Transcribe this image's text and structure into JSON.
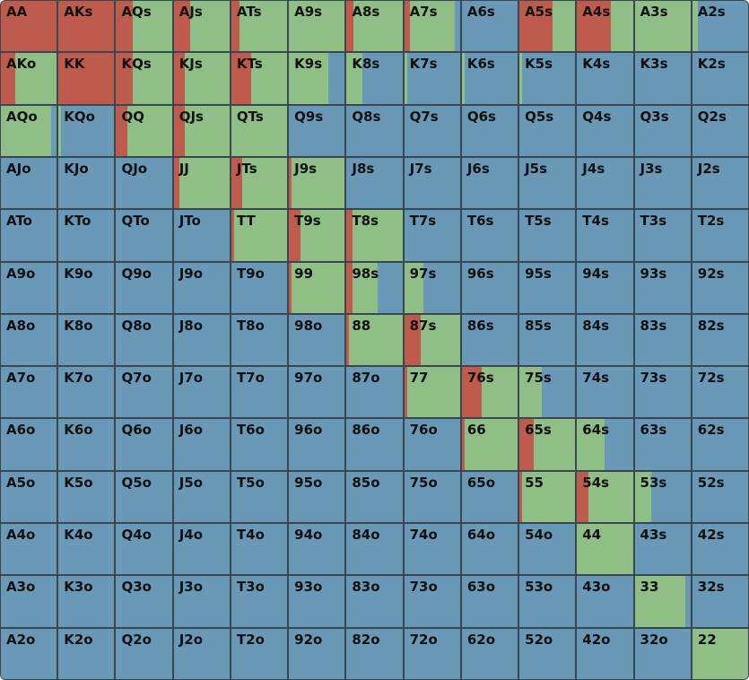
{
  "colors": {
    "raise": "#bf5b4c",
    "call": "#8fbf86",
    "fold": "#6999b6",
    "grid_line": "#3a4650",
    "text": "#111111"
  },
  "legend_order": [
    "raise",
    "call",
    "fold"
  ],
  "hands": [
    [
      "AA",
      "AKs",
      "AQs",
      "AJs",
      "ATs",
      "A9s",
      "A8s",
      "A7s",
      "A6s",
      "A5s",
      "A4s",
      "A3s",
      "A2s"
    ],
    [
      "AKo",
      "KK",
      "KQs",
      "KJs",
      "KTs",
      "K9s",
      "K8s",
      "K7s",
      "K6s",
      "K5s",
      "K4s",
      "K3s",
      "K2s"
    ],
    [
      "AQo",
      "KQo",
      "QQ",
      "QJs",
      "QTs",
      "Q9s",
      "Q8s",
      "Q7s",
      "Q6s",
      "Q5s",
      "Q4s",
      "Q3s",
      "Q2s"
    ],
    [
      "AJo",
      "KJo",
      "QJo",
      "JJ",
      "JTs",
      "J9s",
      "J8s",
      "J7s",
      "J6s",
      "J5s",
      "J4s",
      "J3s",
      "J2s"
    ],
    [
      "ATo",
      "KTo",
      "QTo",
      "JTo",
      "TT",
      "T9s",
      "T8s",
      "T7s",
      "T6s",
      "T5s",
      "T4s",
      "T3s",
      "T2s"
    ],
    [
      "A9o",
      "K9o",
      "Q9o",
      "J9o",
      "T9o",
      "99",
      "98s",
      "97s",
      "96s",
      "95s",
      "94s",
      "93s",
      "92s"
    ],
    [
      "A8o",
      "K8o",
      "Q8o",
      "J8o",
      "T8o",
      "98o",
      "88",
      "87s",
      "86s",
      "85s",
      "84s",
      "83s",
      "82s"
    ],
    [
      "A7o",
      "K7o",
      "Q7o",
      "J7o",
      "T7o",
      "97o",
      "87o",
      "77",
      "76s",
      "75s",
      "74s",
      "73s",
      "72s"
    ],
    [
      "A6o",
      "K6o",
      "Q6o",
      "J6o",
      "T6o",
      "96o",
      "86o",
      "76o",
      "66",
      "65s",
      "64s",
      "63s",
      "62s"
    ],
    [
      "A5o",
      "K5o",
      "Q5o",
      "J5o",
      "T5o",
      "95o",
      "85o",
      "75o",
      "65o",
      "55",
      "54s",
      "53s",
      "52s"
    ],
    [
      "A4o",
      "K4o",
      "Q4o",
      "J4o",
      "T4o",
      "94o",
      "84o",
      "74o",
      "64o",
      "54o",
      "44",
      "43s",
      "42s"
    ],
    [
      "A3o",
      "K3o",
      "Q3o",
      "J3o",
      "T3o",
      "93o",
      "83o",
      "73o",
      "63o",
      "53o",
      "43o",
      "33",
      "32s"
    ],
    [
      "A2o",
      "K2o",
      "Q2o",
      "J2o",
      "T2o",
      "92o",
      "82o",
      "72o",
      "62o",
      "52o",
      "42o",
      "32o",
      "22"
    ]
  ],
  "frequencies": [
    [
      [
        1,
        0,
        0
      ],
      [
        1,
        0,
        0
      ],
      [
        0.3,
        0.7,
        0
      ],
      [
        0.3,
        0.7,
        0
      ],
      [
        0.15,
        0.85,
        0
      ],
      [
        0,
        1,
        0
      ],
      [
        0.12,
        0.88,
        0
      ],
      [
        0.1,
        0.8,
        0.1
      ],
      [
        0,
        0,
        1
      ],
      [
        0.6,
        0.4,
        0
      ],
      [
        0.6,
        0.4,
        0
      ],
      [
        0,
        1,
        0
      ],
      [
        0,
        0.1,
        0.9
      ]
    ],
    [
      [
        0.25,
        0.75,
        0
      ],
      [
        1,
        0,
        0
      ],
      [
        0.3,
        0.7,
        0
      ],
      [
        0.2,
        0.8,
        0
      ],
      [
        0.35,
        0.65,
        0
      ],
      [
        0,
        0.7,
        0.3
      ],
      [
        0,
        0.28,
        0.72
      ],
      [
        0,
        0.05,
        0.95
      ],
      [
        0,
        0.05,
        0.95
      ],
      [
        0,
        0.05,
        0.95
      ],
      [
        0,
        0,
        1
      ],
      [
        0,
        0,
        1
      ],
      [
        0,
        0,
        1
      ]
    ],
    [
      [
        0,
        0.9,
        0.1
      ],
      [
        0,
        0.05,
        0.95
      ],
      [
        0.2,
        0.8,
        0
      ],
      [
        0.2,
        0.8,
        0
      ],
      [
        0,
        1,
        0
      ],
      [
        0,
        0,
        1
      ],
      [
        0,
        0,
        1
      ],
      [
        0,
        0,
        1
      ],
      [
        0,
        0,
        1
      ],
      [
        0,
        0,
        1
      ],
      [
        0,
        0,
        1
      ],
      [
        0,
        0,
        1
      ],
      [
        0,
        0,
        1
      ]
    ],
    [
      [
        0,
        0,
        1
      ],
      [
        0,
        0,
        1
      ],
      [
        0,
        0,
        1
      ],
      [
        0.1,
        0.9,
        0
      ],
      [
        0.2,
        0.8,
        0
      ],
      [
        0.05,
        0.95,
        0
      ],
      [
        0,
        0,
        1
      ],
      [
        0,
        0,
        1
      ],
      [
        0,
        0,
        1
      ],
      [
        0,
        0,
        1
      ],
      [
        0,
        0,
        1
      ],
      [
        0,
        0,
        1
      ],
      [
        0,
        0,
        1
      ]
    ],
    [
      [
        0,
        0,
        1
      ],
      [
        0,
        0,
        1
      ],
      [
        0,
        0,
        1
      ],
      [
        0,
        0,
        1
      ],
      [
        0.05,
        0.95,
        0
      ],
      [
        0.2,
        0.8,
        0
      ],
      [
        0.1,
        0.9,
        0
      ],
      [
        0,
        0,
        1
      ],
      [
        0,
        0,
        1
      ],
      [
        0,
        0,
        1
      ],
      [
        0,
        0,
        1
      ],
      [
        0,
        0,
        1
      ],
      [
        0,
        0,
        1
      ]
    ],
    [
      [
        0,
        0,
        1
      ],
      [
        0,
        0,
        1
      ],
      [
        0,
        0,
        1
      ],
      [
        0,
        0,
        1
      ],
      [
        0,
        0,
        1
      ],
      [
        0.05,
        0.95,
        0
      ],
      [
        0.1,
        0.45,
        0.45
      ],
      [
        0,
        0.35,
        0.65
      ],
      [
        0,
        0,
        1
      ],
      [
        0,
        0,
        1
      ],
      [
        0,
        0,
        1
      ],
      [
        0,
        0,
        1
      ],
      [
        0,
        0,
        1
      ]
    ],
    [
      [
        0,
        0,
        1
      ],
      [
        0,
        0,
        1
      ],
      [
        0,
        0,
        1
      ],
      [
        0,
        0,
        1
      ],
      [
        0,
        0,
        1
      ],
      [
        0,
        0,
        1
      ],
      [
        0.05,
        0.95,
        0
      ],
      [
        0.3,
        0.7,
        0
      ],
      [
        0,
        0,
        1
      ],
      [
        0,
        0,
        1
      ],
      [
        0,
        0,
        1
      ],
      [
        0,
        0,
        1
      ],
      [
        0,
        0,
        1
      ]
    ],
    [
      [
        0,
        0,
        1
      ],
      [
        0,
        0,
        1
      ],
      [
        0,
        0,
        1
      ],
      [
        0,
        0,
        1
      ],
      [
        0,
        0,
        1
      ],
      [
        0,
        0,
        1
      ],
      [
        0,
        0,
        1
      ],
      [
        0.05,
        0.95,
        0
      ],
      [
        0.35,
        0.65,
        0
      ],
      [
        0,
        0.4,
        0.6
      ],
      [
        0,
        0,
        1
      ],
      [
        0,
        0,
        1
      ],
      [
        0,
        0,
        1
      ]
    ],
    [
      [
        0,
        0,
        1
      ],
      [
        0,
        0,
        1
      ],
      [
        0,
        0,
        1
      ],
      [
        0,
        0,
        1
      ],
      [
        0,
        0,
        1
      ],
      [
        0,
        0,
        1
      ],
      [
        0,
        0,
        1
      ],
      [
        0,
        0,
        1
      ],
      [
        0.05,
        0.95,
        0
      ],
      [
        0.25,
        0.75,
        0
      ],
      [
        0,
        0.5,
        0.5
      ],
      [
        0,
        0,
        1
      ],
      [
        0,
        0,
        1
      ]
    ],
    [
      [
        0,
        0,
        1
      ],
      [
        0,
        0,
        1
      ],
      [
        0,
        0,
        1
      ],
      [
        0,
        0,
        1
      ],
      [
        0,
        0,
        1
      ],
      [
        0,
        0,
        1
      ],
      [
        0,
        0,
        1
      ],
      [
        0,
        0,
        1
      ],
      [
        0,
        0,
        1
      ],
      [
        0.05,
        0.95,
        0
      ],
      [
        0.2,
        0.8,
        0
      ],
      [
        0,
        0.3,
        0.7
      ],
      [
        0,
        0,
        1
      ]
    ],
    [
      [
        0,
        0,
        1
      ],
      [
        0,
        0,
        1
      ],
      [
        0,
        0,
        1
      ],
      [
        0,
        0,
        1
      ],
      [
        0,
        0,
        1
      ],
      [
        0,
        0,
        1
      ],
      [
        0,
        0,
        1
      ],
      [
        0,
        0,
        1
      ],
      [
        0,
        0,
        1
      ],
      [
        0,
        0,
        1
      ],
      [
        0,
        1,
        0
      ],
      [
        0,
        0,
        1
      ],
      [
        0,
        0,
        1
      ]
    ],
    [
      [
        0,
        0,
        1
      ],
      [
        0,
        0,
        1
      ],
      [
        0,
        0,
        1
      ],
      [
        0,
        0,
        1
      ],
      [
        0,
        0,
        1
      ],
      [
        0,
        0,
        1
      ],
      [
        0,
        0,
        1
      ],
      [
        0,
        0,
        1
      ],
      [
        0,
        0,
        1
      ],
      [
        0,
        0,
        1
      ],
      [
        0,
        0,
        1
      ],
      [
        0,
        0.9,
        0.1
      ],
      [
        0,
        0,
        1
      ]
    ],
    [
      [
        0,
        0,
        1
      ],
      [
        0,
        0,
        1
      ],
      [
        0,
        0,
        1
      ],
      [
        0,
        0,
        1
      ],
      [
        0,
        0,
        1
      ],
      [
        0,
        0,
        1
      ],
      [
        0,
        0,
        1
      ],
      [
        0,
        0,
        1
      ],
      [
        0,
        0,
        1
      ],
      [
        0,
        0,
        1
      ],
      [
        0,
        0,
        1
      ],
      [
        0,
        0,
        1
      ],
      [
        0,
        1,
        0
      ]
    ]
  ]
}
